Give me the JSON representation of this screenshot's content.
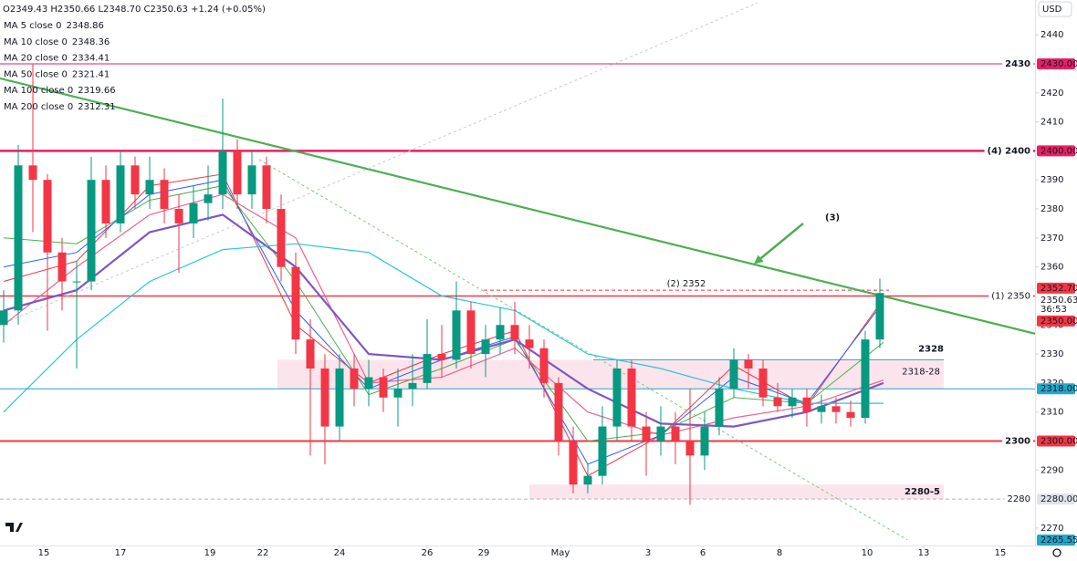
{
  "chart_data": {
    "type": "candlestick",
    "header": "O2349.43 H2350.66 L2348.70 C2350.63 +1.24 (+0.05%)",
    "currency": "USD",
    "up_color": "#089981",
    "down_color": "#f23645",
    "ylim": [
      2264,
      2452
    ],
    "yticks": [
      2270,
      2290,
      2310,
      2320,
      2330,
      2340,
      2360,
      2370,
      2380,
      2390,
      2410,
      2420,
      2440
    ],
    "xlim": [
      0,
      565
    ],
    "xticks": [
      {
        "value": 24,
        "label": "15"
      },
      {
        "value": 66,
        "label": "17"
      },
      {
        "value": 115,
        "label": "19"
      },
      {
        "value": 144,
        "label": "22"
      },
      {
        "value": 186,
        "label": "24"
      },
      {
        "value": 234,
        "label": "26"
      },
      {
        "value": 265,
        "label": "29"
      },
      {
        "value": 307,
        "label": "May"
      },
      {
        "value": 355,
        "label": "3"
      },
      {
        "value": 385,
        "label": "6"
      },
      {
        "value": 427,
        "label": "8"
      },
      {
        "value": 475,
        "label": "10"
      },
      {
        "value": 506,
        "label": "13"
      },
      {
        "value": 548,
        "label": "15"
      }
    ],
    "candles": [
      [
        2,
        2340,
        2352,
        2334,
        2345
      ],
      [
        10,
        2345,
        2402,
        2340,
        2395
      ],
      [
        18,
        2395,
        2430,
        2372,
        2390
      ],
      [
        26,
        2390,
        2392,
        2338,
        2365
      ],
      [
        34,
        2365,
        2370,
        2345,
        2355
      ],
      [
        42,
        2355,
        2362,
        2325,
        2355
      ],
      [
        50,
        2355,
        2398,
        2352,
        2390
      ],
      [
        58,
        2390,
        2395,
        2370,
        2375
      ],
      [
        66,
        2375,
        2400,
        2372,
        2395
      ],
      [
        74,
        2395,
        2398,
        2380,
        2385
      ],
      [
        82,
        2385,
        2398,
        2380,
        2390
      ],
      [
        90,
        2390,
        2394,
        2375,
        2380
      ],
      [
        98,
        2380,
        2385,
        2358,
        2375
      ],
      [
        106,
        2375,
        2388,
        2370,
        2382
      ],
      [
        114,
        2382,
        2395,
        2376,
        2385
      ],
      [
        122,
        2385,
        2418,
        2380,
        2400
      ],
      [
        130,
        2400,
        2404,
        2380,
        2385
      ],
      [
        138,
        2385,
        2400,
        2380,
        2395
      ],
      [
        146,
        2395,
        2398,
        2375,
        2380
      ],
      [
        154,
        2380,
        2385,
        2355,
        2360
      ],
      [
        162,
        2360,
        2365,
        2330,
        2335
      ],
      [
        170,
        2335,
        2342,
        2295,
        2325
      ],
      [
        178,
        2325,
        2330,
        2292,
        2305
      ],
      [
        186,
        2305,
        2330,
        2300,
        2325
      ],
      [
        194,
        2325,
        2330,
        2312,
        2318
      ],
      [
        202,
        2318,
        2328,
        2312,
        2322
      ],
      [
        210,
        2322,
        2325,
        2310,
        2315
      ],
      [
        218,
        2315,
        2325,
        2305,
        2318
      ],
      [
        226,
        2318,
        2330,
        2312,
        2320
      ],
      [
        234,
        2320,
        2342,
        2318,
        2330
      ],
      [
        242,
        2330,
        2340,
        2322,
        2328
      ],
      [
        250,
        2328,
        2355,
        2325,
        2345
      ],
      [
        258,
        2345,
        2348,
        2325,
        2330
      ],
      [
        266,
        2330,
        2340,
        2322,
        2335
      ],
      [
        274,
        2335,
        2346,
        2330,
        2340
      ],
      [
        282,
        2340,
        2348,
        2330,
        2335
      ],
      [
        290,
        2335,
        2340,
        2325,
        2332
      ],
      [
        298,
        2332,
        2335,
        2315,
        2320
      ],
      [
        306,
        2320,
        2322,
        2295,
        2300
      ],
      [
        314,
        2300,
        2305,
        2282,
        2285
      ],
      [
        322,
        2285,
        2292,
        2282,
        2288
      ],
      [
        330,
        2288,
        2312,
        2285,
        2305
      ],
      [
        338,
        2305,
        2328,
        2300,
        2325
      ],
      [
        346,
        2325,
        2328,
        2300,
        2305
      ],
      [
        354,
        2305,
        2310,
        2288,
        2300
      ],
      [
        362,
        2300,
        2312,
        2295,
        2305
      ],
      [
        370,
        2305,
        2310,
        2292,
        2300
      ],
      [
        378,
        2300,
        2318,
        2278,
        2295
      ],
      [
        386,
        2295,
        2310,
        2290,
        2305
      ],
      [
        394,
        2305,
        2322,
        2302,
        2318
      ],
      [
        402,
        2318,
        2332,
        2315,
        2328
      ],
      [
        410,
        2328,
        2330,
        2318,
        2325
      ],
      [
        418,
        2325,
        2328,
        2312,
        2315
      ],
      [
        426,
        2315,
        2320,
        2310,
        2312
      ],
      [
        434,
        2312,
        2318,
        2308,
        2315
      ],
      [
        442,
        2315,
        2318,
        2305,
        2310
      ],
      [
        450,
        2310,
        2316,
        2306,
        2312
      ],
      [
        458,
        2312,
        2315,
        2306,
        2310
      ],
      [
        466,
        2310,
        2314,
        2305,
        2308
      ],
      [
        474,
        2308,
        2338,
        2306,
        2335
      ],
      [
        482,
        2335,
        2356,
        2332,
        2351
      ]
    ],
    "ma_x": [
      2,
      42,
      82,
      122,
      162,
      202,
      242,
      282,
      322,
      362,
      402,
      442,
      484
    ],
    "series": [
      {
        "name": "MA 5 close 0",
        "last": 2348.86,
        "color": "#f23645",
        "width": 1,
        "values": [
          2355,
          2362,
          2388,
          2392,
          2340,
          2320,
          2330,
          2338,
          2288,
          2302,
          2326,
          2312,
          2349
        ]
      },
      {
        "name": "MA 10 close 0",
        "last": 2348.36,
        "color": "#2962ff",
        "width": 1,
        "values": [
          2360,
          2365,
          2385,
          2390,
          2345,
          2318,
          2328,
          2336,
          2292,
          2302,
          2322,
          2313,
          2348
        ]
      },
      {
        "name": "MA 20 close 0",
        "last": 2334.41,
        "color": "#4caf50",
        "width": 1,
        "values": [
          2370,
          2368,
          2383,
          2388,
          2355,
          2316,
          2325,
          2335,
          2300,
          2303,
          2315,
          2313,
          2334
        ]
      },
      {
        "name": "MA 50 close 0",
        "last": 2321.41,
        "color": "#f06292",
        "width": 1.2,
        "values": [
          2340,
          2360,
          2378,
          2385,
          2370,
          2320,
          2322,
          2332,
          2310,
          2302,
          2308,
          2312,
          2321
        ]
      },
      {
        "name": "MA 100 close 0",
        "last": 2319.66,
        "color": "#7e57c2",
        "width": 2.2,
        "values": [
          2345,
          2352,
          2372,
          2378,
          2360,
          2330,
          2328,
          2335,
          2318,
          2306,
          2305,
          2310,
          2320
        ]
      },
      {
        "name": "MA 200 close 0",
        "last": 2312.31,
        "color": "#26c6da",
        "width": 1.2,
        "values": [
          2310,
          2335,
          2355,
          2366,
          2368,
          2365,
          2350,
          2345,
          2330,
          2325,
          2318,
          2313,
          2313
        ]
      }
    ],
    "levels": [
      {
        "value": 2430,
        "label": "2430",
        "color": "#e91e63",
        "width": 1
      },
      {
        "value": 2400,
        "label": "(4) 2400",
        "color": "#e91e63",
        "width": 2.5
      },
      {
        "value": 2352,
        "label": "(2) 2352",
        "color": "#f23645",
        "width": 1,
        "dashed": true,
        "range": [
          265,
          487
        ]
      },
      {
        "value": 2350,
        "label": "(1) 2350",
        "color": "#f23645",
        "width": 1.5
      },
      {
        "value": 2318,
        "color": "#22a7c9",
        "width": 1
      },
      {
        "value": 2300,
        "label": "2300",
        "color": "#f23645",
        "width": 2
      },
      {
        "value": 2280,
        "label": "2280",
        "color": "#b2b5be",
        "width": 1,
        "dashed": true
      }
    ],
    "zones": [
      {
        "from": 2318,
        "to": 2328,
        "range": [
          152,
          517
        ],
        "label": "2318-28",
        "color": "#fce4ec",
        "text_color": "#e91e63"
      },
      {
        "from": 2280,
        "to": 2285,
        "range": [
          290,
          517
        ],
        "label": "2280-5",
        "color": "#fce4ec",
        "text_color": "#e91e63"
      }
    ],
    "zone_top": {
      "value": 2328,
      "range": [
        325,
        517
      ],
      "label": "2328",
      "color": "#22a7c9"
    },
    "trendlines": [
      {
        "points": [
          [
            0,
            2425
          ],
          [
            567,
            2337
          ]
        ],
        "color": "#4caf50",
        "width": 2.2
      },
      {
        "points": [
          [
            0,
            2340
          ],
          [
            415,
            2451
          ]
        ],
        "color": "#c8cbd2",
        "width": 1,
        "dashed": true
      },
      {
        "points": [
          [
            142,
            2397
          ],
          [
            497,
            2266
          ]
        ],
        "color": "#81c784",
        "width": 1,
        "dashed": true
      }
    ],
    "arrow": {
      "from": [
        440,
        2375
      ],
      "to": [
        413,
        2361
      ],
      "color": "#4caf50",
      "label": "(3)",
      "label_at": [
        452,
        2377
      ]
    },
    "tags": [
      {
        "value": 2430,
        "label": "2430.00",
        "color": "#e91e63",
        "text_color": "#ffffff"
      },
      {
        "value": 2400,
        "label": "2400.00",
        "color": "#e91e63",
        "text_color": "#ffffff"
      },
      {
        "value": 2352.7,
        "label": "2352.70",
        "color": "#f23645",
        "text_color": "#ffffff"
      },
      {
        "value": 2350.63,
        "label": "2350.63",
        "countdown": "36:53",
        "color": "#ffffff",
        "text_color": "#131722"
      },
      {
        "value": 2350,
        "label": "2350.00",
        "color": "#f23645",
        "text_color": "#ffffff"
      },
      {
        "value": 2318,
        "label": "2318.00",
        "color": "#22a7c9",
        "text_color": "#ffffff"
      },
      {
        "value": 2300,
        "label": "2300.00",
        "color": "#f23645",
        "text_color": "#ffffff"
      },
      {
        "value": 2280,
        "label": "2280.00",
        "color": "#e0e3eb",
        "text_color": "#131722"
      },
      {
        "value": 2265.55,
        "label": "2265.55",
        "color": "#22a7c9",
        "text_color": "#ffffff"
      }
    ]
  }
}
